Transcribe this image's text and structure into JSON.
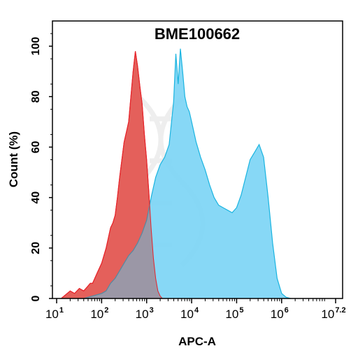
{
  "chart_data": {
    "type": "area",
    "title": "BME100662",
    "xlabel": "APC-A",
    "ylabel": "Count  (%)",
    "x_scale": "log10",
    "xlim": [
      10,
      15848931.92
    ],
    "ylim": [
      0,
      110
    ],
    "x_ticks": [
      {
        "base": "10",
        "exp": "1"
      },
      {
        "base": "10",
        "exp": "2"
      },
      {
        "base": "10",
        "exp": "3"
      },
      {
        "base": "10",
        "exp": "4"
      },
      {
        "base": "10",
        "exp": "5"
      },
      {
        "base": "10",
        "exp": "6"
      },
      {
        "base": "10",
        "exp": "7.2"
      }
    ],
    "y_ticks": [
      "0",
      "20",
      "40",
      "60",
      "80",
      "100"
    ],
    "y_tick_values": [
      0,
      20,
      40,
      60,
      80,
      100
    ],
    "grid": false,
    "series": [
      {
        "fill": "#f87575",
        "stroke": "#e8232a",
        "x": [
          12.6,
          20,
          25,
          32,
          40,
          50,
          56,
          63,
          79,
          100,
          126,
          158,
          178,
          200,
          224,
          251,
          282,
          316,
          355,
          398,
          447,
          501,
          562,
          631,
          708,
          794,
          891,
          1000,
          1122,
          1259,
          1413,
          1585,
          1778,
          1995,
          2239
        ],
        "values": [
          0,
          3,
          2,
          4,
          3,
          5,
          6,
          6,
          10,
          14,
          20,
          28,
          30,
          33,
          40,
          48,
          55,
          62,
          66,
          70,
          80,
          90,
          98,
          92,
          84,
          77,
          65,
          55,
          42,
          28,
          16,
          8,
          3,
          1,
          0
        ]
      },
      {
        "fill": "#7ad4f5",
        "stroke": "#1ab4e0",
        "x": [
          40,
          63,
          100,
          126,
          158,
          200,
          251,
          316,
          398,
          501,
          631,
          794,
          1000,
          1259,
          1585,
          1995,
          2512,
          3162,
          3981,
          4467,
          5012,
          5623,
          6310,
          7079,
          7943,
          8913,
          10000,
          12589,
          15849,
          19953,
          25119,
          31623,
          39811,
          50119,
          63096,
          79433,
          100000,
          125893,
          158489,
          199526,
          251189,
          316228,
          398107,
          501187,
          630957,
          794328,
          1000000,
          1258925,
          1584893
        ],
        "values": [
          0,
          1,
          2,
          3,
          6,
          8,
          11,
          14,
          17,
          19,
          22,
          26,
          31,
          40,
          48,
          53,
          56,
          61,
          78,
          97,
          85,
          99,
          90,
          80,
          76,
          74,
          70,
          62,
          56,
          51,
          45,
          40,
          37,
          36,
          35,
          34,
          36,
          41,
          48,
          55,
          58,
          61,
          56,
          40,
          22,
          8,
          2,
          0.5,
          0
        ]
      }
    ],
    "watermark": "helix-logo"
  }
}
